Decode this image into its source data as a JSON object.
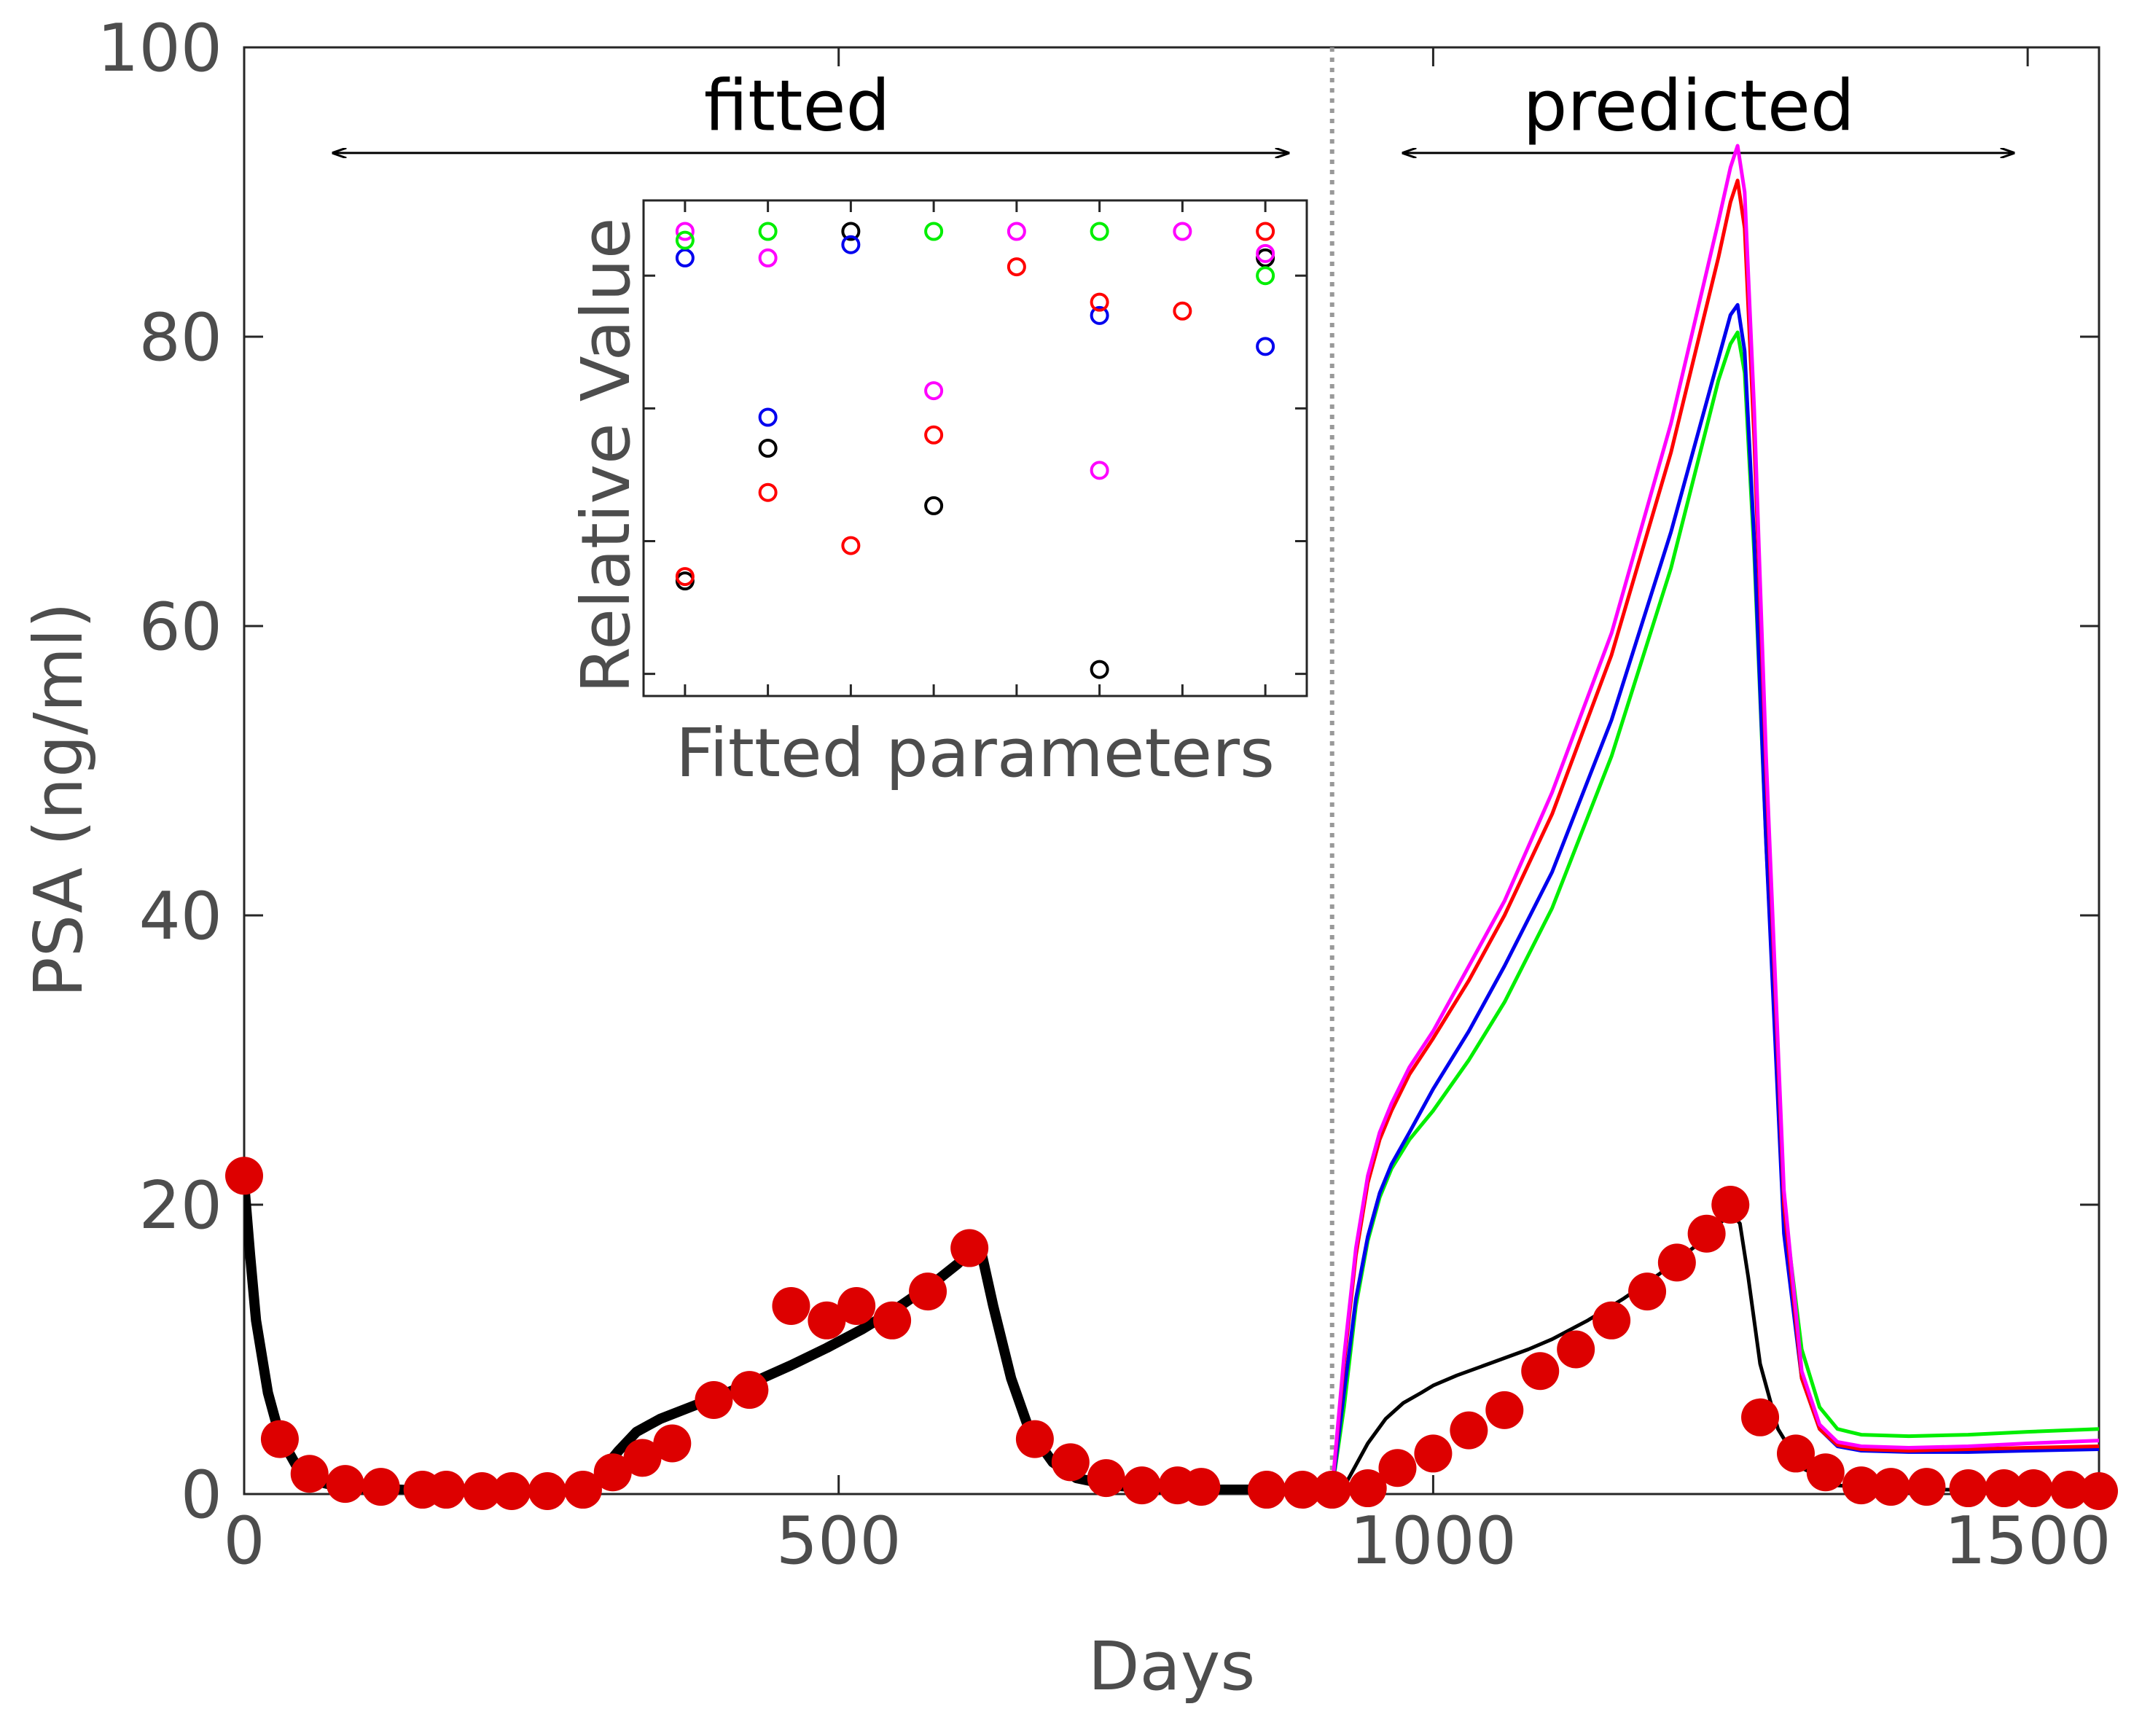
{
  "chart_data": [
    {
      "type": "line",
      "title": "",
      "xlabel": "Days",
      "ylabel": "PSA (ng/ml)",
      "xlim": [
        0,
        1560
      ],
      "ylim": [
        0,
        100
      ],
      "xticks": [
        0,
        500,
        1000,
        1500
      ],
      "yticks": [
        0,
        20,
        40,
        60,
        80,
        100
      ],
      "grid": false,
      "legend": "none",
      "boundary_x": 915,
      "annotations": [
        {
          "text": "fitted",
          "x_from": 75,
          "x_to": 878,
          "x_text": 465,
          "y_text": 96.3,
          "y_arrow": 92.7
        },
        {
          "text": "predicted",
          "x_from": 975,
          "x_to": 1488,
          "x_text": 1215,
          "y_text": 96.3,
          "y_arrow": 92.7
        }
      ],
      "measured": {
        "color": "#dd0000",
        "x": [
          0,
          30,
          55,
          85,
          115,
          150,
          170,
          200,
          225,
          255,
          285,
          310,
          335,
          360,
          395,
          425,
          460,
          490,
          515,
          545,
          575,
          610,
          665,
          695,
          725,
          755,
          785,
          805,
          860,
          890,
          915,
          945,
          970,
          1000,
          1030,
          1060,
          1090,
          1120,
          1150,
          1180,
          1205,
          1230,
          1250,
          1275,
          1305,
          1330,
          1360,
          1385,
          1415,
          1450,
          1480,
          1505,
          1535,
          1560
        ],
        "y": [
          22,
          3.8,
          1.4,
          0.7,
          0.5,
          0.3,
          0.3,
          0.2,
          0.2,
          0.2,
          0.3,
          1.5,
          2.5,
          3.5,
          6.5,
          7.2,
          13,
          12,
          13,
          12,
          14,
          17,
          3.8,
          2.2,
          1.1,
          0.6,
          0.6,
          0.5,
          0.3,
          0.3,
          0.3,
          0.4,
          1.8,
          2.8,
          4.4,
          5.8,
          8.5,
          10,
          12,
          14,
          16,
          18,
          20,
          5.3,
          2.8,
          1.5,
          0.6,
          0.5,
          0.5,
          0.4,
          0.4,
          0.4,
          0.3,
          0.2
        ]
      },
      "series": [
        {
          "color": "#000000",
          "width": "thick",
          "x": [
            0,
            5,
            10,
            20,
            30,
            45,
            60,
            80,
            100,
            130,
            160,
            200,
            240,
            270,
            285,
            295,
            305,
            315,
            330,
            350,
            375,
            400,
            430,
            460,
            490,
            520,
            550,
            580,
            600,
            612,
            620,
            630,
            645,
            660,
            680,
            700,
            730,
            760,
            800,
            850,
            900,
            915
          ],
          "y": [
            21.5,
            16.5,
            12,
            7,
            4,
            1.8,
            0.9,
            0.5,
            0.4,
            0.3,
            0.2,
            0.2,
            0.2,
            0.2,
            0.2,
            0.8,
            2,
            3,
            4.3,
            5.2,
            6,
            6.8,
            7.8,
            8.9,
            10.1,
            11.4,
            12.9,
            14.6,
            15.9,
            16.9,
            16.7,
            13,
            8,
            4.5,
            2.2,
            1.1,
            0.6,
            0.4,
            0.3,
            0.3,
            0.3,
            0.3
          ]
        },
        {
          "color": "#000000",
          "width": "thin",
          "x": [
            915,
            925,
            935,
            945,
            960,
            975,
            990,
            1000,
            1020,
            1050,
            1080,
            1100,
            1130,
            1160,
            1190,
            1220,
            1245,
            1252,
            1258,
            1265,
            1275,
            1290,
            1310,
            1340,
            1380,
            1430,
            1500,
            1560
          ],
          "y": [
            0.3,
            0.5,
            2,
            3.5,
            5.2,
            6.3,
            7,
            7.5,
            8.2,
            9.1,
            10,
            10.7,
            12,
            13.5,
            15.2,
            17.1,
            19,
            19.3,
            18.7,
            15,
            9,
            4.5,
            1.8,
            0.6,
            0.35,
            0.3,
            0.25,
            0.2
          ]
        },
        {
          "color": "#00ee00",
          "width": "thin",
          "x": [
            915,
            925,
            935,
            945,
            955,
            965,
            980,
            1000,
            1030,
            1060,
            1100,
            1150,
            1200,
            1240,
            1250,
            1256,
            1262,
            1270,
            1280,
            1295,
            1310,
            1325,
            1340,
            1360,
            1400,
            1450,
            1500,
            1560
          ],
          "y": [
            0.3,
            6,
            13,
            17.5,
            20.5,
            22.5,
            24.5,
            26.5,
            30,
            34,
            40.5,
            51,
            64,
            77,
            79.5,
            80.3,
            77.5,
            65,
            45,
            20,
            10,
            6,
            4.5,
            4.1,
            4,
            4.1,
            4.3,
            4.5
          ]
        },
        {
          "color": "#0000ee",
          "width": "thin",
          "x": [
            915,
            925,
            935,
            945,
            955,
            965,
            980,
            1000,
            1030,
            1060,
            1100,
            1150,
            1200,
            1240,
            1250,
            1256,
            1262,
            1270,
            1280,
            1295,
            1310,
            1325,
            1340,
            1360,
            1400,
            1450,
            1500,
            1560
          ],
          "y": [
            0.3,
            7,
            13.5,
            17.8,
            20.8,
            22.8,
            25,
            28,
            32,
            36.5,
            43,
            53.5,
            66.5,
            78.5,
            81.5,
            82.2,
            79,
            66,
            45,
            18,
            8,
            4.5,
            3.3,
            3,
            2.9,
            2.9,
            3,
            3.1
          ]
        },
        {
          "color": "#ff0000",
          "width": "thin",
          "x": [
            915,
            925,
            935,
            945,
            955,
            965,
            980,
            1000,
            1030,
            1060,
            1100,
            1150,
            1200,
            1240,
            1250,
            1256,
            1262,
            1270,
            1280,
            1295,
            1310,
            1325,
            1340,
            1360,
            1400,
            1450,
            1500,
            1560
          ],
          "y": [
            0.3,
            9,
            16.5,
            21.5,
            24.5,
            26.5,
            29,
            31.5,
            35.5,
            40,
            47,
            58,
            72,
            85.5,
            89.3,
            90.8,
            87.5,
            73,
            50,
            20,
            8,
            4.5,
            3.4,
            3.1,
            3,
            3.1,
            3.2,
            3.3
          ]
        },
        {
          "color": "#ff00ff",
          "width": "thin",
          "x": [
            915,
            925,
            935,
            945,
            955,
            965,
            980,
            1000,
            1030,
            1060,
            1100,
            1150,
            1200,
            1240,
            1250,
            1256,
            1262,
            1270,
            1280,
            1295,
            1310,
            1325,
            1340,
            1360,
            1400,
            1450,
            1500,
            1560
          ],
          "y": [
            0.3,
            9.5,
            17,
            22,
            25,
            27,
            29.5,
            32,
            36.5,
            41,
            48.5,
            59.5,
            74,
            88,
            91.7,
            93.2,
            90,
            75,
            51,
            21,
            8.5,
            4.8,
            3.6,
            3.3,
            3.2,
            3.3,
            3.5,
            3.7
          ]
        }
      ]
    },
    {
      "type": "scatter",
      "title": "",
      "xlabel": "Fitted parameters",
      "ylabel": "Relative Value",
      "xlim": [
        0.5,
        8.5
      ],
      "ylim": [
        -0.05,
        1.07
      ],
      "xticks": [
        1,
        2,
        3,
        4,
        5,
        6,
        7,
        8
      ],
      "yticks": [
        0,
        0.3,
        0.6,
        0.9
      ],
      "tick_labels_shown": false,
      "grid": false,
      "legend": "none",
      "series": [
        {
          "color": "#000000",
          "points": [
            [
              1,
              0.21
            ],
            [
              2,
              0.51
            ],
            [
              3,
              1.0
            ],
            [
              4,
              0.38
            ],
            [
              6,
              0.01
            ],
            [
              8,
              0.94
            ]
          ]
        },
        {
          "color": "#ff00ff",
          "points": [
            [
              1,
              1.0
            ],
            [
              2,
              0.94
            ],
            [
              4,
              0.64
            ],
            [
              5,
              1.0
            ],
            [
              6,
              0.46
            ],
            [
              7,
              1.0
            ],
            [
              8,
              0.95
            ]
          ]
        },
        {
          "color": "#0000ee",
          "points": [
            [
              1,
              0.94
            ],
            [
              2,
              0.58
            ],
            [
              3,
              0.97
            ],
            [
              6,
              0.81
            ],
            [
              8,
              0.74
            ]
          ]
        },
        {
          "color": "#00ee00",
          "points": [
            [
              1,
              0.98
            ],
            [
              2,
              1.0
            ],
            [
              4,
              1.0
            ],
            [
              6,
              1.0
            ],
            [
              8,
              0.9
            ]
          ]
        },
        {
          "color": "#ff0000",
          "points": [
            [
              1,
              0.22
            ],
            [
              2,
              0.41
            ],
            [
              3,
              0.29
            ],
            [
              4,
              0.54
            ],
            [
              5,
              0.92
            ],
            [
              6,
              0.84
            ],
            [
              7,
              0.82
            ],
            [
              8,
              1.0
            ]
          ]
        }
      ]
    }
  ]
}
